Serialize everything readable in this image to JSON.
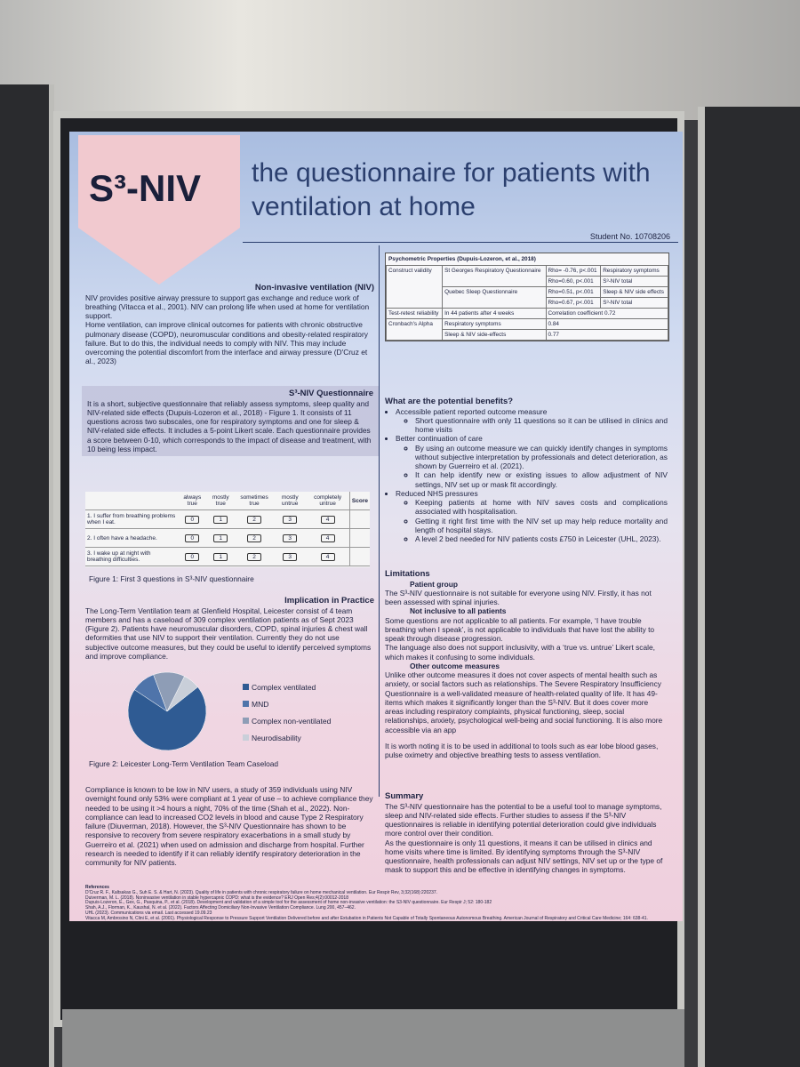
{
  "header": {
    "logo": "S³-NIV",
    "title": "the questionnaire for patients with ventilation at home",
    "student_no": "Student No. 10708206"
  },
  "niv": {
    "heading": "Non-invasive ventilation (NIV)",
    "paragraphs": [
      "NIV provides positive airway pressure to support gas exchange and reduce work of breathing (Vitacca et al., 2001).  NIV can prolong life when used at home for ventilation support.",
      "Home ventilation, can improve clinical outcomes for patients with chronic obstructive pulmonary disease (COPD), neuromuscular conditions and obesity-related respiratory failure. But to do this, the individual needs to comply with NIV. This may include overcoming the potential discomfort from the interface and airway pressure (D'Cruz et al., 2023)"
    ]
  },
  "questionnaire": {
    "heading": "S³-NIV Questionnaire",
    "text": "It is a short, subjective questionnaire that reliably assess symptoms, sleep quality and NIV-related side effects (Dupuis-Lozeron et al., 2018) - Figure 1. It consists of 11 questions across two subscales, one for respiratory symptoms and one for sleep & NIV-related side effects. It includes a 5-point Likert scale. Each questionnaire provides a score between 0-10, which corresponds to the impact of disease and treatment, with 10 being less impact."
  },
  "figure1": {
    "columns": [
      "always true",
      "mostly true",
      "sometimes true",
      "mostly untrue",
      "completely untrue"
    ],
    "score": "Score",
    "items": [
      "1.  I suffer from breathing problems when I eat.",
      "2.  I often have a headache.",
      "3.  I wake up at night with breathing difficulties."
    ],
    "options": [
      0,
      1,
      2,
      3,
      4
    ],
    "caption": "Figure 1: First 3 questions in S³-NIV questionnaire"
  },
  "implication": {
    "heading": "Implication in Practice",
    "text": "The Long-Term Ventilation team at Glenfield Hospital, Leicester consist of 4 team members and has a caseload of 309 complex ventilation patients as of Sept 2023 (Figure 2). Patients have neuromuscular disorders, COPD, spinal injuries & chest wall deformities that use NIV to support their ventilation. Currently they do not use subjective outcome measures, but they could be useful to identify perceived symptoms and  improve compliance."
  },
  "chart_data": {
    "type": "pie",
    "categories": [
      "Complex ventilated",
      "MND",
      "Complex non-ventilated",
      "Neurodisability"
    ],
    "values": [
      70,
      10,
      13,
      7
    ],
    "colors": [
      "#2f5b93",
      "#4f74aa",
      "#8e9db6",
      "#c9cfd9"
    ],
    "caption": "Figure 2: Leicester Long-Term Ventilation Team Caseload"
  },
  "compliance": {
    "text": "Compliance is known to be low in NIV users, a study of 359 individuals using NIV overnight found only 53% were compliant at 1 year of use – to achieve compliance they needed to be using it >4 hours a night, 70% of the time (Shah et al., 2022). Non-compliance can lead to increased CO2 levels in blood and cause Type 2 Respiratory failure (Diuverman, 2018). However, the S³-NIV Questionnaire has shown to be responsive to recovery from severe respiratory exacerbations in a small study by Guerreiro et al. (2021) when used on admission and  discharge from hospital. Further research is needed to identify if it can reliably identify respiratory deterioration in the community for NIV patients."
  },
  "references": {
    "heading": "References",
    "items": [
      "D'Cruz R. F., Kaltsakas G., Suh E. S. & Hart, N. (2023). Quality of life in patients with chronic respiratory failure on home mechanical ventilation. Eur Respir Rev, 3;32(168):220237.",
      "Duiverman, M. L. (2018). Noninvasive ventilation in stable hypercapnic COPD: what is the evidence? ERJ Open Res;4(2):00012-2018",
      "Dupuis-Lozeron, E., Gex, G., Pasquina, P., et al. (2018). Development and validation of a simple tool for the assessment of home non-invasive ventilation: the S3-NIV questionnaire. Eur Respir J; 52: 180-182",
      "Shah, A.J., Florman, K., Kaushal, N. et al. (2022). Factors Affecting Domiciliary Non-Invasive Ventilation Compliance. Lung 200, 457–462.",
      "UHL (2023). Communications via email. Last accessed 19.09.23",
      "Vitacca M, Ambrosino N, Clini E, et al. (2001). Physiological Response to Pressure Support Ventilation Delivered before and after Extubation in Patients Not Capable of Totally Spontaneous Autonomous Breathing. American Journal of Respiratory and Critical Care Medicine; 164: 638-41."
    ]
  },
  "psychometric": {
    "title": "Psychometric Properties (Dupuis-Lozeron, et al., 2018)",
    "rows": [
      [
        "Construct validity",
        "St Georges Respiratory Questionnaire",
        "Rho= -0.76, p<.001",
        "Respiratory symptoms"
      ],
      [
        "Rho=0.60, p<.001",
        "S³-NIV total"
      ],
      [
        "Quebec Sleep Questionnaire",
        "Rho=0.51, p<.001",
        "Sleep & NIV side effects"
      ],
      [
        "Rho=0.67, p<.001",
        "S³-NIV total"
      ],
      [
        "Test-retest reliability",
        "In 44 patients after 4 weeks",
        "Correlation coefficient 0.72"
      ],
      [
        "Cronbach's Alpha",
        "Respiratory symptoms",
        "0.84"
      ],
      [
        "Sleep & NIV side-effects",
        "0.77"
      ]
    ]
  },
  "benefits": {
    "heading": "What are the potential benefits?",
    "items": [
      {
        "text": "Accessible patient reported outcome measure",
        "sub": [
          "Short questionnaire with only 11 questions so it can be utilised in clinics and home visits"
        ]
      },
      {
        "text": "Better continuation of care",
        "sub": [
          "By using an outcome measure we can quickly identify changes in symptoms without subjective interpretation by professionals and detect deterioration, as shown by Guerreiro et al. (2021).",
          "It can help identify new or existing issues to allow adjustment of NIV settings, NIV set up or mask fit accordingly."
        ]
      },
      {
        "text": "Reduced NHS pressures",
        "sub": [
          "Keeping patients at home with NIV saves costs and complications associated with hospitalisation.",
          "Getting it right first time with the NIV set up may help reduce mortality and length of hospital stays.",
          "A level 2 bed needed for NIV patients costs £750 in Leicester (UHL, 2023)."
        ]
      }
    ]
  },
  "limitations": {
    "heading": "Limitations",
    "sections": [
      {
        "heading": "Patient group",
        "paragraphs": [
          "The S³-NIV questionnaire is not suitable for everyone using NIV. Firstly, it has not been assessed with spinal injuries."
        ]
      },
      {
        "heading": "Not inclusive to all patients",
        "paragraphs": [
          "Some questions are not applicable to all patients. For example, ‘I have trouble breathing when I speak’, is not applicable to individuals that have lost the ability to speak through disease progression.",
          "The language also does not support inclusivity, with a ‘true vs. untrue’ Likert scale, which makes it confusing to some individuals."
        ]
      },
      {
        "heading": "Other outcome measures",
        "paragraphs": [
          "Unlike other outcome measures it does not cover aspects of mental health such as anxiety, or social factors such as relationships. The Severe Respiratory Insufficiency Questionnaire is a well-validated measure of health-related quality of life. It has 49-items which makes it significantly longer than the S³-NIV. But it does cover more areas including respiratory complaints, physical functioning, sleep, social relationships, anxiety, psychological well-being and social functioning. It is also more accessible via an app"
        ]
      }
    ],
    "note": "It is worth noting it is to be used in additional to tools such as ear lobe blood gases, pulse oximetry and objective breathing tests to assess ventilation."
  },
  "summary": {
    "heading": "Summary",
    "paragraphs": [
      "The S³-NIV questionnaire has the potential to be a useful tool to manage symptoms, sleep and NIV-related side effects. Further studies to assess if the S³-NIV questionnaires is reliable in identifying potential deterioration could give individuals more control over their condition.",
      "As the questionnaire is only 11 questions, it means it can be utilised in clinics and home visits where time is limited. By identifying symptoms through the S³-NIV questionnaire, health professionals can adjust NIV settings, NIV set up or the type of mask to support this and be effective in identifying changes in symptoms."
    ]
  }
}
